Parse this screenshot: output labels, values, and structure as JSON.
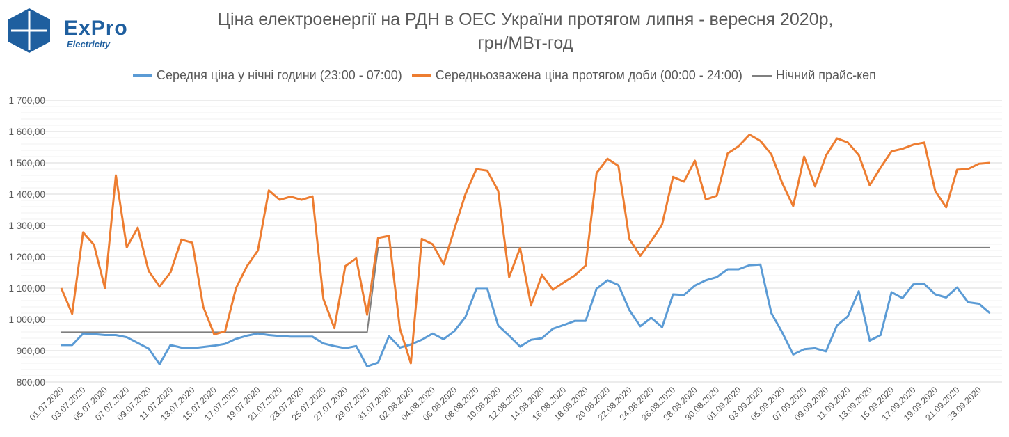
{
  "logo": {
    "brand": "ExPro",
    "sub": "Electricity"
  },
  "colors": {
    "night": "#5B9BD5",
    "day": "#ED7D31",
    "cap": "#7F7F7F",
    "grid_major": "#D9D9D9",
    "grid_minor": "#F0F0F0",
    "logo_blue": "#1F5F9F"
  },
  "chart_data": {
    "type": "line",
    "title": "Ціна електроенергії на РДН в ОЕС України протягом липня - вересня 2020р,",
    "subtitle": "грн/МВт-год",
    "xlabel": "",
    "ylabel": "",
    "ylim": [
      800,
      1700
    ],
    "y_step": 100,
    "y_tick_labels": [
      "800,00",
      "900,00",
      "1 000,00",
      "1 100,00",
      "1 200,00",
      "1 300,00",
      "1 400,00",
      "1 500,00",
      "1 600,00",
      "1 700,00"
    ],
    "grid": true,
    "legend_position": "top",
    "x": [
      "01.07.2020",
      "02.07.2020",
      "03.07.2020",
      "04.07.2020",
      "05.07.2020",
      "06.07.2020",
      "07.07.2020",
      "08.07.2020",
      "09.07.2020",
      "10.07.2020",
      "11.07.2020",
      "12.07.2020",
      "13.07.2020",
      "14.07.2020",
      "15.07.2020",
      "16.07.2020",
      "17.07.2020",
      "18.07.2020",
      "19.07.2020",
      "20.07.2020",
      "21.07.2020",
      "22.07.2020",
      "23.07.2020",
      "24.07.2020",
      "25.07.2020",
      "26.07.2020",
      "27.07.2020",
      "28.07.2020",
      "29.07.2020",
      "30.07.2020",
      "31.07.2020",
      "01.08.2020",
      "02.08.2020",
      "03.08.2020",
      "04.08.2020",
      "05.08.2020",
      "06.08.2020",
      "07.08.2020",
      "08.08.2020",
      "09.08.2020",
      "10.08.2020",
      "11.08.2020",
      "12.08.2020",
      "13.08.2020",
      "14.08.2020",
      "15.08.2020",
      "16.08.2020",
      "17.08.2020",
      "18.08.2020",
      "19.08.2020",
      "20.08.2020",
      "21.08.2020",
      "22.08.2020",
      "23.08.2020",
      "24.08.2020",
      "25.08.2020",
      "26.08.2020",
      "27.08.2020",
      "28.08.2020",
      "29.08.2020",
      "30.08.2020",
      "31.08.2020",
      "01.09.2020",
      "02.09.2020",
      "03.09.2020",
      "04.09.2020",
      "05.09.2020",
      "06.09.2020",
      "07.09.2020",
      "08.09.2020",
      "09.09.2020",
      "10.09.2020",
      "11.09.2020",
      "12.09.2020",
      "13.09.2020",
      "14.09.2020",
      "15.09.2020",
      "16.09.2020",
      "17.09.2020",
      "18.09.2020",
      "19.09.2020",
      "20.09.2020",
      "21.09.2020",
      "22.09.2020",
      "23.09.2020",
      "24.09.2020"
    ],
    "series": [
      {
        "name": "Середня ціна у нічні години (23:00 - 07:00)",
        "color": "#5B9BD5",
        "values": [
          918,
          918,
          955,
          953,
          950,
          950,
          943,
          925,
          907,
          857,
          918,
          910,
          908,
          912,
          916,
          922,
          938,
          948,
          955,
          950,
          947,
          945,
          945,
          945,
          923,
          915,
          908,
          915,
          850,
          862,
          947,
          910,
          920,
          935,
          955,
          937,
          963,
          1008,
          1098,
          1098,
          980,
          948,
          913,
          935,
          940,
          970,
          982,
          995,
          995,
          1098,
          1125,
          1110,
          1030,
          978,
          1005,
          975,
          1080,
          1078,
          1108,
          1125,
          1135,
          1160,
          1160,
          1173,
          1175,
          1020,
          958,
          888,
          905,
          908,
          898,
          980,
          1010,
          1090,
          932,
          950,
          1087,
          1068,
          1112,
          1113,
          1080,
          1070,
          1102,
          1055,
          1050,
          1020
        ]
      },
      {
        "name": "Середньозважена ціна протягом доби (00:00 - 24:00)",
        "color": "#ED7D31",
        "values": [
          1100,
          1018,
          1278,
          1238,
          1100,
          1460,
          1230,
          1293,
          1155,
          1105,
          1150,
          1255,
          1245,
          1040,
          952,
          962,
          1100,
          1170,
          1220,
          1412,
          1382,
          1392,
          1382,
          1393,
          1065,
          972,
          1170,
          1195,
          1015,
          1260,
          1267,
          970,
          860,
          1257,
          1240,
          1176,
          1290,
          1400,
          1480,
          1475,
          1410,
          1135,
          1228,
          1045,
          1142,
          1095,
          1118,
          1140,
          1172,
          1467,
          1513,
          1490,
          1257,
          1203,
          1250,
          1303,
          1455,
          1440,
          1507,
          1383,
          1395,
          1530,
          1553,
          1590,
          1570,
          1527,
          1435,
          1362,
          1520,
          1425,
          1523,
          1578,
          1565,
          1525,
          1428,
          1485,
          1537,
          1545,
          1558,
          1565,
          1410,
          1358,
          1478,
          1480,
          1497,
          1500
        ]
      },
      {
        "name": "Нічний прайс-кеп",
        "color": "#7F7F7F",
        "values": [
          959,
          959,
          959,
          959,
          959,
          959,
          959,
          959,
          959,
          959,
          959,
          959,
          959,
          959,
          959,
          959,
          959,
          959,
          959,
          959,
          959,
          959,
          959,
          959,
          959,
          959,
          959,
          959,
          959,
          1229,
          1229,
          1229,
          1229,
          1229,
          1229,
          1229,
          1229,
          1229,
          1229,
          1229,
          1229,
          1229,
          1229,
          1229,
          1229,
          1229,
          1229,
          1229,
          1229,
          1229,
          1229,
          1229,
          1229,
          1229,
          1229,
          1229,
          1229,
          1229,
          1229,
          1229,
          1229,
          1229,
          1229,
          1229,
          1229,
          1229,
          1229,
          1229,
          1229,
          1229,
          1229,
          1229,
          1229,
          1229,
          1229,
          1229,
          1229,
          1229,
          1229,
          1229,
          1229,
          1229,
          1229,
          1229,
          1229,
          1229
        ]
      }
    ]
  }
}
